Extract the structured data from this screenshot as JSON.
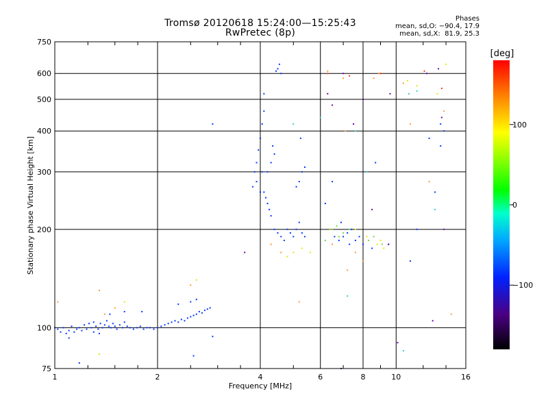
{
  "header": {
    "title_line1": "Tromsø 20120618 15:24:00—15:25:43",
    "title_line2": "RwPretec (8p)",
    "phases_label": "Phases",
    "phase_o": "mean, sd,O: −90.4, 17.9",
    "phase_x": "mean, sd,X:  81.9, 25.3"
  },
  "colorbar": {
    "unit_label": "[deg]",
    "ticks": [
      {
        "value": 100,
        "label": "100"
      },
      {
        "value": 0,
        "label": "0"
      },
      {
        "value": -100,
        "label": "−100"
      }
    ],
    "range": [
      -180,
      180
    ]
  },
  "colors": {
    "blue": "#0033ff",
    "orange": "#ff9933",
    "yellow": "#e6e600",
    "green": "#66dd44",
    "cyan": "#33cccc",
    "purple": "#6600aa",
    "red": "#ff3300",
    "grid": "#000000"
  },
  "chart_data": {
    "type": "scatter",
    "title": "Tromsø 20120618 15:24:00—15:25:43",
    "subtitle": "RwPretec (8p)",
    "xlabel": "Frequency [MHz]",
    "ylabel": "Stationary phase Virtual Height [km]",
    "x_scale": "log",
    "y_scale": "log",
    "xlim": [
      1,
      16
    ],
    "ylim": [
      75,
      750
    ],
    "x_ticks": [
      1,
      2,
      4,
      6,
      8,
      10,
      16
    ],
    "x_tick_labels": [
      "1",
      "2",
      "4",
      "6",
      "8",
      "10",
      "16"
    ],
    "x_minor_ticks": [
      1.25,
      1.5,
      1.75,
      2.5,
      3,
      3.5,
      5,
      7,
      9,
      12,
      14
    ],
    "y_ticks": [
      75,
      100,
      200,
      300,
      400,
      500,
      600,
      750
    ],
    "y_tick_labels": [
      "75",
      "100",
      "200",
      "300",
      "400",
      "500",
      "600",
      "750"
    ],
    "grid": true,
    "series": [
      {
        "color_key": "blue",
        "points": [
          [
            1.0,
            100
          ],
          [
            1.02,
            99
          ],
          [
            1.04,
            97
          ],
          [
            1.06,
            100
          ],
          [
            1.08,
            96
          ],
          [
            1.1,
            98
          ],
          [
            1.12,
            101
          ],
          [
            1.14,
            97
          ],
          [
            1.16,
            99
          ],
          [
            1.18,
            100
          ],
          [
            1.2,
            98
          ],
          [
            1.22,
            102
          ],
          [
            1.24,
            99
          ],
          [
            1.26,
            103
          ],
          [
            1.28,
            100
          ],
          [
            1.3,
            104
          ],
          [
            1.32,
            101
          ],
          [
            1.34,
            99
          ],
          [
            1.36,
            103
          ],
          [
            1.38,
            100
          ],
          [
            1.4,
            102
          ],
          [
            1.42,
            105
          ],
          [
            1.44,
            101
          ],
          [
            1.46,
            100
          ],
          [
            1.48,
            103
          ],
          [
            1.5,
            101
          ],
          [
            1.52,
            99
          ],
          [
            1.55,
            102
          ],
          [
            1.58,
            100
          ],
          [
            1.6,
            104
          ],
          [
            1.63,
            101
          ],
          [
            1.66,
            100
          ],
          [
            1.7,
            99
          ],
          [
            1.74,
            100
          ],
          [
            1.78,
            101
          ],
          [
            1.82,
            99
          ],
          [
            1.86,
            100
          ],
          [
            1.9,
            100
          ],
          [
            1.95,
            99
          ],
          [
            2.0,
            100
          ],
          [
            2.05,
            101
          ],
          [
            2.1,
            102
          ],
          [
            2.15,
            103
          ],
          [
            2.2,
            104
          ],
          [
            2.25,
            105
          ],
          [
            2.3,
            104
          ],
          [
            2.35,
            106
          ],
          [
            2.4,
            105
          ],
          [
            2.45,
            107
          ],
          [
            2.5,
            108
          ],
          [
            2.55,
            109
          ],
          [
            2.6,
            110
          ],
          [
            2.65,
            112
          ],
          [
            2.7,
            111
          ],
          [
            2.75,
            113
          ],
          [
            2.8,
            114
          ],
          [
            2.85,
            115
          ],
          [
            1.1,
            93
          ],
          [
            1.3,
            97
          ],
          [
            1.45,
            110
          ],
          [
            1.6,
            112
          ],
          [
            1.8,
            112
          ],
          [
            2.3,
            118
          ],
          [
            2.5,
            120
          ],
          [
            2.6,
            122
          ],
          [
            2.9,
            94
          ],
          [
            2.9,
            420
          ],
          [
            1.18,
            78
          ],
          [
            1.35,
            96
          ],
          [
            2.55,
            82
          ],
          [
            3.8,
            270
          ],
          [
            3.85,
            300
          ],
          [
            3.9,
            320
          ],
          [
            3.95,
            350
          ],
          [
            4.0,
            380
          ],
          [
            4.05,
            420
          ],
          [
            4.1,
            460
          ],
          [
            4.1,
            520
          ],
          [
            4.05,
            300
          ],
          [
            4.0,
            260
          ],
          [
            3.9,
            280
          ],
          [
            4.1,
            260
          ],
          [
            4.15,
            250
          ],
          [
            4.2,
            240
          ],
          [
            4.25,
            230
          ],
          [
            4.3,
            220
          ],
          [
            4.2,
            300
          ],
          [
            4.3,
            320
          ],
          [
            4.4,
            340
          ],
          [
            4.35,
            360
          ],
          [
            4.5,
            620
          ],
          [
            4.55,
            640
          ],
          [
            4.6,
            600
          ],
          [
            4.45,
            610
          ],
          [
            4.4,
            200
          ],
          [
            4.5,
            195
          ],
          [
            4.6,
            190
          ],
          [
            4.7,
            185
          ],
          [
            4.8,
            200
          ],
          [
            4.9,
            195
          ],
          [
            5.0,
            190
          ],
          [
            5.1,
            200
          ],
          [
            5.2,
            210
          ],
          [
            5.3,
            195
          ],
          [
            5.4,
            190
          ],
          [
            5.2,
            280
          ],
          [
            5.3,
            300
          ],
          [
            5.1,
            270
          ],
          [
            5.4,
            310
          ],
          [
            5.25,
            380
          ],
          [
            6.2,
            240
          ],
          [
            6.4,
            200
          ],
          [
            6.6,
            190
          ],
          [
            6.8,
            185
          ],
          [
            7.0,
            190
          ],
          [
            7.2,
            195
          ],
          [
            7.4,
            200
          ],
          [
            7.6,
            185
          ],
          [
            7.8,
            190
          ],
          [
            8.0,
            180
          ],
          [
            8.5,
            175
          ],
          [
            8.7,
            320
          ],
          [
            9.5,
            180
          ],
          [
            6.5,
            280
          ],
          [
            6.9,
            210
          ],
          [
            7.3,
            180
          ],
          [
            11.5,
            200
          ],
          [
            13.5,
            420
          ],
          [
            13.8,
            400
          ],
          [
            13.5,
            360
          ],
          [
            12.5,
            380
          ],
          [
            13.0,
            260
          ],
          [
            11.0,
            160
          ]
        ]
      },
      {
        "color_key": "orange",
        "points": [
          [
            1.02,
            120
          ],
          [
            1.35,
            130
          ],
          [
            1.4,
            110
          ],
          [
            1.5,
            115
          ],
          [
            2.5,
            135
          ],
          [
            6.3,
            610
          ],
          [
            7.0,
            580
          ],
          [
            8.6,
            580
          ],
          [
            10.5,
            560
          ],
          [
            6.5,
            180
          ],
          [
            7.2,
            150
          ],
          [
            7.6,
            170
          ],
          [
            8.0,
            160
          ],
          [
            4.3,
            180
          ],
          [
            4.6,
            170
          ],
          [
            5.2,
            120
          ],
          [
            11.0,
            420
          ],
          [
            12.5,
            280
          ],
          [
            13.8,
            460
          ],
          [
            14.5,
            110
          ],
          [
            7.1,
            400
          ],
          [
            8.9,
            600
          ]
        ]
      },
      {
        "color_key": "yellow",
        "points": [
          [
            1.35,
            83
          ],
          [
            1.6,
            120
          ],
          [
            2.6,
            140
          ],
          [
            4.8,
            165
          ],
          [
            5.0,
            170
          ],
          [
            5.3,
            175
          ],
          [
            5.6,
            170
          ],
          [
            6.4,
            200
          ],
          [
            6.8,
            190
          ],
          [
            7.6,
            200
          ],
          [
            8.2,
            190
          ],
          [
            8.8,
            180
          ],
          [
            9.0,
            185
          ],
          [
            9.2,
            175
          ],
          [
            10.8,
            570
          ],
          [
            11.5,
            550
          ],
          [
            13.2,
            520
          ],
          [
            14.0,
            640
          ]
        ]
      },
      {
        "color_key": "green",
        "points": [
          [
            6.5,
            200
          ],
          [
            6.7,
            205
          ],
          [
            6.8,
            190
          ],
          [
            7.0,
            195
          ],
          [
            7.3,
            200
          ],
          [
            8.3,
            185
          ],
          [
            8.6,
            190
          ],
          [
            9.1,
            180
          ],
          [
            6.2,
            185
          ]
        ]
      },
      {
        "color_key": "cyan",
        "points": [
          [
            5.0,
            420
          ],
          [
            6.0,
            440
          ],
          [
            7.6,
            400
          ],
          [
            8.2,
            300
          ],
          [
            10.5,
            85
          ],
          [
            10.9,
            520
          ],
          [
            11.5,
            530
          ],
          [
            7.2,
            125
          ],
          [
            13.0,
            230
          ]
        ]
      },
      {
        "color_key": "purple",
        "points": [
          [
            6.3,
            520
          ],
          [
            6.5,
            480
          ],
          [
            7.0,
            600
          ],
          [
            7.5,
            420
          ],
          [
            8.0,
            500
          ],
          [
            9.5,
            180
          ],
          [
            9.6,
            520
          ],
          [
            10.1,
            90
          ],
          [
            12.3,
            600
          ],
          [
            13.3,
            620
          ],
          [
            13.6,
            440
          ],
          [
            12.8,
            105
          ],
          [
            13.8,
            200
          ],
          [
            6.9,
            75
          ],
          [
            8.5,
            230
          ],
          [
            3.6,
            170
          ]
        ]
      },
      {
        "color_key": "red",
        "points": [
          [
            6.3,
            600
          ],
          [
            7.3,
            590
          ],
          [
            9.0,
            600
          ],
          [
            12.1,
            610
          ],
          [
            13.6,
            540
          ]
        ]
      }
    ]
  }
}
